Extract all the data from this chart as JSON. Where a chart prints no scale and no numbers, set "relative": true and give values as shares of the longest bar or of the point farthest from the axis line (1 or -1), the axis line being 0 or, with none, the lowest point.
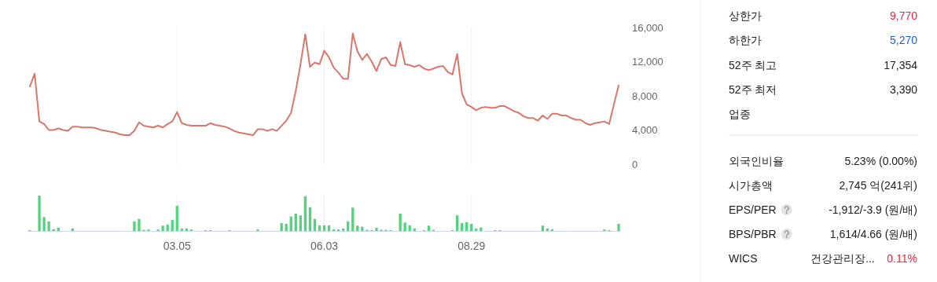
{
  "chart_data": [
    {
      "type": "line",
      "categories": [
        null,
        null,
        null,
        null,
        null,
        null,
        null,
        null,
        null,
        null,
        null,
        null,
        null,
        null,
        null,
        null,
        null,
        null,
        null,
        null,
        null,
        null,
        null,
        null,
        null,
        null,
        null,
        null,
        null,
        null,
        null,
        "03.05",
        null,
        null,
        null,
        null,
        null,
        null,
        null,
        null,
        null,
        null,
        null,
        null,
        null,
        null,
        null,
        null,
        null,
        null,
        null,
        null,
        null,
        null,
        null,
        null,
        null,
        null,
        null,
        null,
        null,
        null,
        "06.03",
        null,
        null,
        null,
        null,
        null,
        null,
        null,
        null,
        null,
        null,
        null,
        null,
        null,
        null,
        null,
        null,
        null,
        null,
        null,
        null,
        null,
        null,
        null,
        null,
        null,
        null,
        null,
        null,
        null,
        null,
        "08.29",
        null,
        null,
        null,
        null,
        null,
        null,
        null,
        null,
        null,
        null,
        null,
        null,
        null,
        null,
        null,
        null,
        null,
        null,
        null,
        null,
        null,
        null,
        null,
        null,
        null,
        null,
        null,
        null,
        null,
        null,
        null
      ],
      "series": [
        {
          "color": "#d9766c",
          "values": [
            9100,
            10600,
            5000,
            4700,
            4000,
            4000,
            4200,
            4000,
            3900,
            4400,
            4400,
            4300,
            4300,
            4300,
            4200,
            4000,
            3900,
            3800,
            3700,
            3500,
            3400,
            3400,
            3900,
            4900,
            4500,
            4400,
            4300,
            4500,
            4300,
            4700,
            5000,
            6100,
            4800,
            4600,
            4500,
            4500,
            4500,
            4500,
            4800,
            4600,
            4500,
            4400,
            4200,
            3900,
            3700,
            3600,
            3500,
            3400,
            4100,
            4100,
            3900,
            4100,
            3900,
            4500,
            5100,
            6000,
            8600,
            11700,
            15200,
            11400,
            11900,
            11700,
            13300,
            12500,
            11300,
            10700,
            10000,
            10000,
            15300,
            13200,
            12200,
            12900,
            12000,
            10900,
            12300,
            12500,
            11600,
            11500,
            14300,
            11700,
            11600,
            11400,
            11600,
            11200,
            11000,
            11200,
            11400,
            11500,
            10800,
            10500,
            12900,
            8300,
            7000,
            6700,
            6300,
            6600,
            6700,
            6600,
            6600,
            6800,
            6800,
            6500,
            6200,
            6000,
            5600,
            5400,
            5400,
            5100,
            5700,
            5300,
            5900,
            5900,
            5700,
            5700,
            5400,
            5200,
            5200,
            4800,
            4600,
            4800,
            4900,
            5000,
            4700,
            7000,
            9200
          ]
        }
      ],
      "ylim": [
        0,
        16000
      ],
      "yticks": [
        0,
        {
          "value": 4000,
          "label": "4,000"
        },
        {
          "value": 8000,
          "label": "8,000"
        },
        {
          "value": 12000,
          "label": "12,000"
        },
        {
          "value": 16000,
          "label": "16,000"
        }
      ],
      "grid": "x",
      "tick_labels": "y"
    },
    {
      "type": "bar",
      "relative": true,
      "categories": [
        null,
        null,
        null,
        null,
        null,
        null,
        null,
        null,
        null,
        null,
        null,
        null,
        null,
        null,
        null,
        null,
        null,
        null,
        null,
        null,
        null,
        null,
        null,
        null,
        null,
        null,
        null,
        null,
        null,
        null,
        null,
        "03.05",
        null,
        null,
        null,
        null,
        null,
        null,
        null,
        null,
        null,
        null,
        null,
        null,
        null,
        null,
        null,
        null,
        null,
        null,
        null,
        null,
        null,
        null,
        null,
        null,
        null,
        null,
        null,
        null,
        null,
        null,
        "06.03",
        null,
        null,
        null,
        null,
        null,
        null,
        null,
        null,
        null,
        null,
        null,
        null,
        null,
        null,
        null,
        null,
        null,
        null,
        null,
        null,
        null,
        null,
        null,
        null,
        null,
        null,
        null,
        null,
        null,
        null,
        "08.29",
        null,
        null,
        null,
        null,
        null,
        null,
        null,
        null,
        null,
        null,
        null,
        null,
        null,
        null,
        null,
        null,
        null,
        null,
        null,
        null,
        null,
        null,
        null,
        null,
        null,
        null,
        null,
        null,
        null,
        null,
        null
      ],
      "series": [
        {
          "color": "#4fd67b",
          "values": [
            0.02,
            0,
            1,
            0.39,
            0.27,
            0.05,
            0.09,
            0,
            0,
            0.07,
            0,
            0,
            0,
            0,
            0,
            0,
            0,
            0,
            0,
            0,
            0,
            0,
            0.27,
            0.34,
            0.03,
            0.04,
            0,
            0.04,
            0.15,
            0.18,
            0.31,
            0.71,
            0.07,
            0.07,
            0.04,
            0,
            0,
            0.02,
            0.02,
            0,
            0,
            0,
            0.02,
            0,
            0,
            0,
            0,
            0,
            0.04,
            0,
            0,
            0,
            0,
            0.22,
            0.2,
            0.41,
            0.49,
            0.44,
            0.98,
            0.67,
            0.34,
            0.16,
            0.16,
            0.16,
            0.05,
            0.04,
            0.07,
            0.27,
            0.66,
            0.15,
            0.12,
            0.03,
            0.02,
            0.09,
            0.03,
            0.03,
            0.02,
            0,
            0.49,
            0.24,
            0.16,
            0.07,
            0,
            0.02,
            0.15,
            0.03,
            0,
            0,
            0,
            0.02,
            0.44,
            0.22,
            0.25,
            0.2,
            0.07,
            0.1,
            0,
            0,
            0.02,
            0.02,
            0,
            0,
            0,
            0,
            0,
            0,
            0,
            0,
            0.15,
            0.07,
            0.05,
            0,
            0,
            0,
            0,
            0,
            0,
            0,
            0,
            0,
            0,
            0.04,
            0.02,
            0,
            0.2
          ]
        }
      ],
      "grid": "x",
      "tick_labels": "x"
    },
    {
      "type": "other",
      "categories": [
        "상한가",
        "하한가",
        "52주 최고",
        "52주 최저",
        "업종",
        "외국인비율",
        "시가총액",
        "EPS/PER",
        "BPS/PBR",
        "WICS"
      ],
      "value_labels": [
        "9,770",
        "5,270",
        "17,354",
        "3,390",
        null,
        "5.23% (0.00%)",
        "2,745 억(241위)",
        "-1,912/-3.9 (원/배)",
        "1,614/4.66 (원/배)",
        "건강관리장... 0.11%"
      ],
      "colors": [
        "#f2233a",
        "#1f62d8",
        null,
        null,
        null,
        null,
        null,
        null,
        null,
        "#f2233a"
      ]
    }
  ]
}
